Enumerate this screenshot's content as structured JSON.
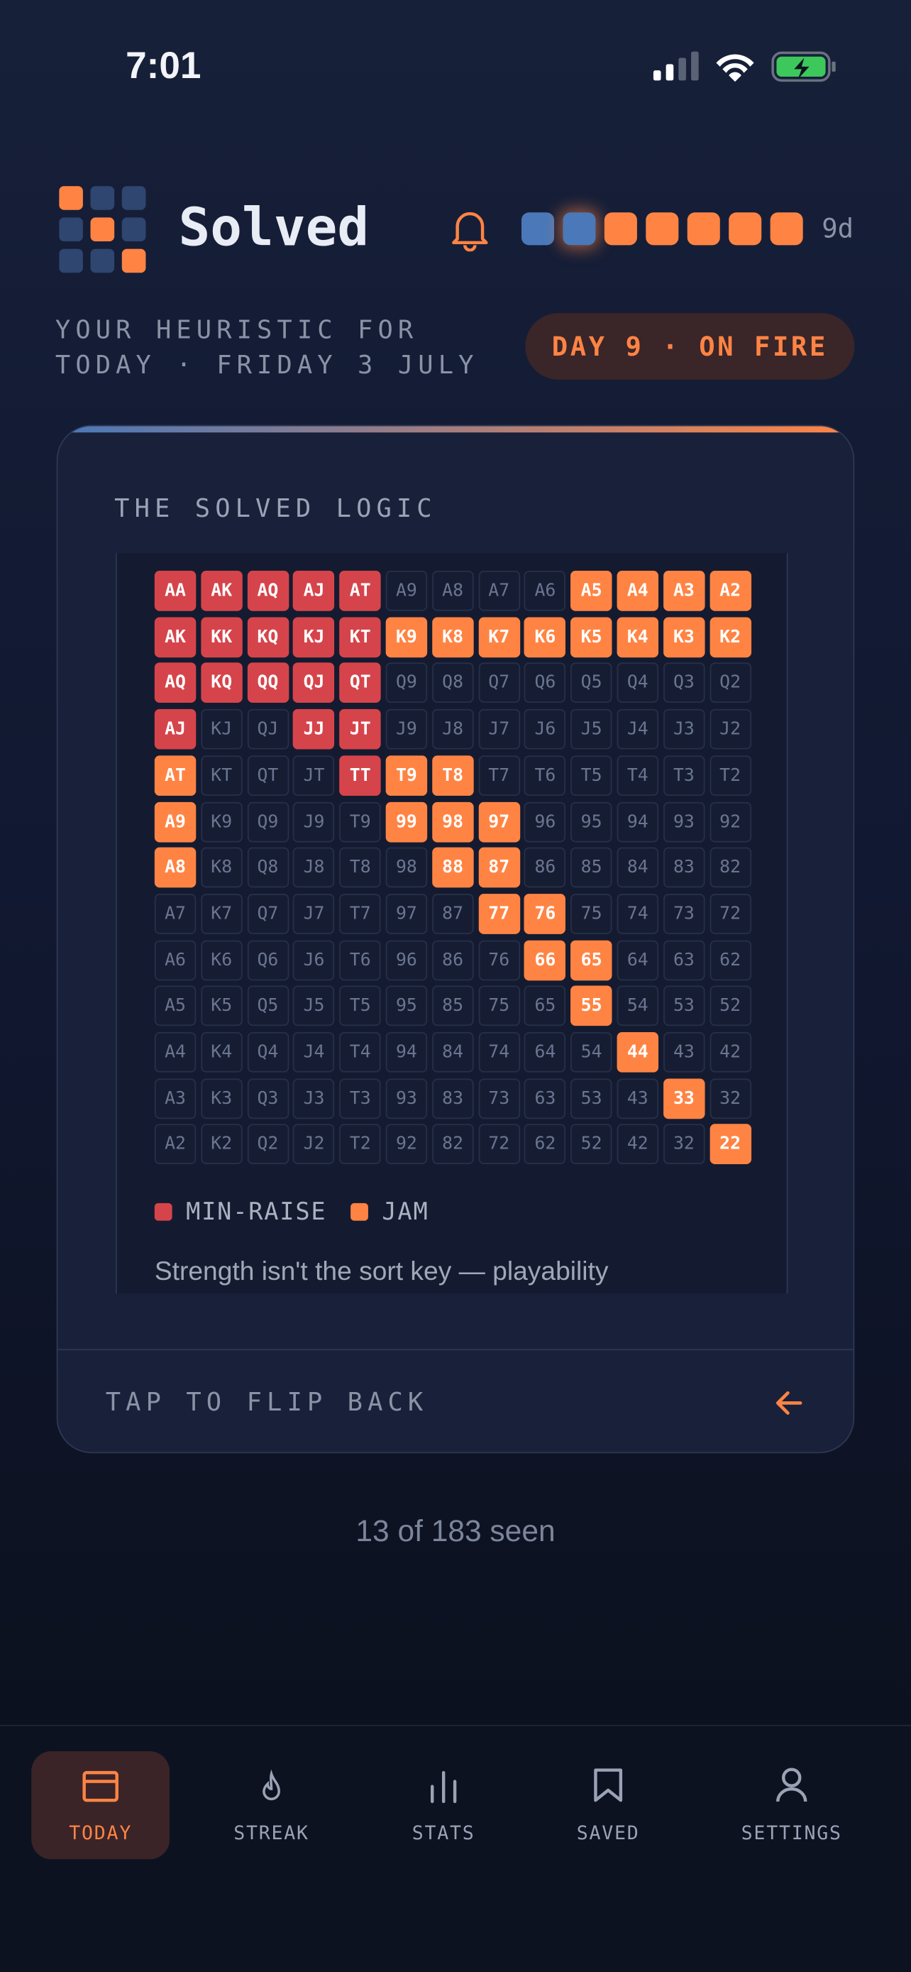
{
  "status_bar": {
    "time": "7:01"
  },
  "header": {
    "app_name": "Solved",
    "streak_dots": [
      "#4a78b8",
      "#4a78b8",
      "#ff8444",
      "#ff8444",
      "#ff8444",
      "#ff8444",
      "#ff8444"
    ],
    "streak_days": "9d"
  },
  "subtitle": {
    "lines": [
      "YOUR HEURISTIC FOR",
      "TODAY · FRIDAY 3 JULY"
    ],
    "badge": "DAY 9 · ON FIRE"
  },
  "card": {
    "title": "THE SOLVED LOGIC",
    "grid": [
      [
        {
          "label": "AA",
          "fill": "#d6444b"
        },
        {
          "label": "AK",
          "fill": "#d6444b"
        },
        {
          "label": "AQ",
          "fill": "#d6444b"
        },
        {
          "label": "AJ",
          "fill": "#d6444b"
        },
        {
          "label": "AT",
          "fill": "#d6444b"
        },
        {
          "label": "A9"
        },
        {
          "label": "A8"
        },
        {
          "label": "A7"
        },
        {
          "label": "A6"
        },
        {
          "label": "A5",
          "fill": "#ff8444"
        },
        {
          "label": "A4",
          "fill": "#ff8444"
        },
        {
          "label": "A3",
          "fill": "#ff8444"
        },
        {
          "label": "A2",
          "fill": "#ff8444"
        }
      ],
      [
        {
          "label": "AK",
          "fill": "#d6444b"
        },
        {
          "label": "KK",
          "fill": "#d6444b"
        },
        {
          "label": "KQ",
          "fill": "#d6444b"
        },
        {
          "label": "KJ",
          "fill": "#d6444b"
        },
        {
          "label": "KT",
          "fill": "#d6444b"
        },
        {
          "label": "K9",
          "fill": "#ff8444"
        },
        {
          "label": "K8",
          "fill": "#ff8444"
        },
        {
          "label": "K7",
          "fill": "#ff8444"
        },
        {
          "label": "K6",
          "fill": "#ff8444"
        },
        {
          "label": "K5",
          "fill": "#ff8444"
        },
        {
          "label": "K4",
          "fill": "#ff8444"
        },
        {
          "label": "K3",
          "fill": "#ff8444"
        },
        {
          "label": "K2",
          "fill": "#ff8444"
        }
      ],
      [
        {
          "label": "AQ",
          "fill": "#d6444b"
        },
        {
          "label": "KQ",
          "fill": "#d6444b"
        },
        {
          "label": "QQ",
          "fill": "#d6444b"
        },
        {
          "label": "QJ",
          "fill": "#d6444b"
        },
        {
          "label": "QT",
          "fill": "#d6444b"
        },
        {
          "label": "Q9"
        },
        {
          "label": "Q8"
        },
        {
          "label": "Q7"
        },
        {
          "label": "Q6"
        },
        {
          "label": "Q5"
        },
        {
          "label": "Q4"
        },
        {
          "label": "Q3"
        },
        {
          "label": "Q2"
        }
      ],
      [
        {
          "label": "AJ",
          "fill": "#d6444b"
        },
        {
          "label": "KJ"
        },
        {
          "label": "QJ"
        },
        {
          "label": "JJ",
          "fill": "#d6444b"
        },
        {
          "label": "JT",
          "fill": "#d6444b"
        },
        {
          "label": "J9"
        },
        {
          "label": "J8"
        },
        {
          "label": "J7"
        },
        {
          "label": "J6"
        },
        {
          "label": "J5"
        },
        {
          "label": "J4"
        },
        {
          "label": "J3"
        },
        {
          "label": "J2"
        }
      ],
      [
        {
          "label": "AT",
          "fill": "#ff8444"
        },
        {
          "label": "KT"
        },
        {
          "label": "QT"
        },
        {
          "label": "JT"
        },
        {
          "label": "TT",
          "fill": "#d6444b"
        },
        {
          "label": "T9",
          "fill": "#ff8444"
        },
        {
          "label": "T8",
          "fill": "#ff8444"
        },
        {
          "label": "T7"
        },
        {
          "label": "T6"
        },
        {
          "label": "T5"
        },
        {
          "label": "T4"
        },
        {
          "label": "T3"
        },
        {
          "label": "T2"
        }
      ],
      [
        {
          "label": "A9",
          "fill": "#ff8444"
        },
        {
          "label": "K9"
        },
        {
          "label": "Q9"
        },
        {
          "label": "J9"
        },
        {
          "label": "T9"
        },
        {
          "label": "99",
          "fill": "#ff8444"
        },
        {
          "label": "98",
          "fill": "#ff8444"
        },
        {
          "label": "97",
          "fill": "#ff8444"
        },
        {
          "label": "96"
        },
        {
          "label": "95"
        },
        {
          "label": "94"
        },
        {
          "label": "93"
        },
        {
          "label": "92"
        }
      ],
      [
        {
          "label": "A8",
          "fill": "#ff8444"
        },
        {
          "label": "K8"
        },
        {
          "label": "Q8"
        },
        {
          "label": "J8"
        },
        {
          "label": "T8"
        },
        {
          "label": "98"
        },
        {
          "label": "88",
          "fill": "#ff8444"
        },
        {
          "label": "87",
          "fill": "#ff8444"
        },
        {
          "label": "86"
        },
        {
          "label": "85"
        },
        {
          "label": "84"
        },
        {
          "label": "83"
        },
        {
          "label": "82"
        }
      ],
      [
        {
          "label": "A7"
        },
        {
          "label": "K7"
        },
        {
          "label": "Q7"
        },
        {
          "label": "J7"
        },
        {
          "label": "T7"
        },
        {
          "label": "97"
        },
        {
          "label": "87"
        },
        {
          "label": "77",
          "fill": "#ff8444"
        },
        {
          "label": "76",
          "fill": "#ff8444"
        },
        {
          "label": "75"
        },
        {
          "label": "74"
        },
        {
          "label": "73"
        },
        {
          "label": "72"
        }
      ],
      [
        {
          "label": "A6"
        },
        {
          "label": "K6"
        },
        {
          "label": "Q6"
        },
        {
          "label": "J6"
        },
        {
          "label": "T6"
        },
        {
          "label": "96"
        },
        {
          "label": "86"
        },
        {
          "label": "76"
        },
        {
          "label": "66",
          "fill": "#ff8444"
        },
        {
          "label": "65",
          "fill": "#ff8444"
        },
        {
          "label": "64"
        },
        {
          "label": "63"
        },
        {
          "label": "62"
        }
      ],
      [
        {
          "label": "A5"
        },
        {
          "label": "K5"
        },
        {
          "label": "Q5"
        },
        {
          "label": "J5"
        },
        {
          "label": "T5"
        },
        {
          "label": "95"
        },
        {
          "label": "85"
        },
        {
          "label": "75"
        },
        {
          "label": "65"
        },
        {
          "label": "55",
          "fill": "#ff8444"
        },
        {
          "label": "54"
        },
        {
          "label": "53"
        },
        {
          "label": "52"
        }
      ],
      [
        {
          "label": "A4"
        },
        {
          "label": "K4"
        },
        {
          "label": "Q4"
        },
        {
          "label": "J4"
        },
        {
          "label": "T4"
        },
        {
          "label": "94"
        },
        {
          "label": "84"
        },
        {
          "label": "74"
        },
        {
          "label": "64"
        },
        {
          "label": "54"
        },
        {
          "label": "44",
          "fill": "#ff8444"
        },
        {
          "label": "43"
        },
        {
          "label": "42"
        }
      ],
      [
        {
          "label": "A3"
        },
        {
          "label": "K3"
        },
        {
          "label": "Q3"
        },
        {
          "label": "J3"
        },
        {
          "label": "T3"
        },
        {
          "label": "93"
        },
        {
          "label": "83"
        },
        {
          "label": "73"
        },
        {
          "label": "63"
        },
        {
          "label": "53"
        },
        {
          "label": "43"
        },
        {
          "label": "33",
          "fill": "#ff8444"
        },
        {
          "label": "32"
        }
      ],
      [
        {
          "label": "A2"
        },
        {
          "label": "K2"
        },
        {
          "label": "Q2"
        },
        {
          "label": "J2"
        },
        {
          "label": "T2"
        },
        {
          "label": "92"
        },
        {
          "label": "82"
        },
        {
          "label": "72"
        },
        {
          "label": "62"
        },
        {
          "label": "52"
        },
        {
          "label": "42"
        },
        {
          "label": "32"
        },
        {
          "label": "22",
          "fill": "#ff8444"
        }
      ]
    ],
    "legend": [
      {
        "label": "MIN-RAISE",
        "color": "#d6444b"
      },
      {
        "label": "JAM",
        "color": "#ff8444"
      }
    ],
    "text": "Strength isn't the sort key — playability",
    "footer": "TAP TO FLIP BACK"
  },
  "progress": "13 of 183 seen",
  "nav": [
    {
      "label": "TODAY",
      "active": true
    },
    {
      "label": "STREAK"
    },
    {
      "label": "STATS"
    },
    {
      "label": "SAVED"
    },
    {
      "label": "SETTINGS"
    }
  ]
}
